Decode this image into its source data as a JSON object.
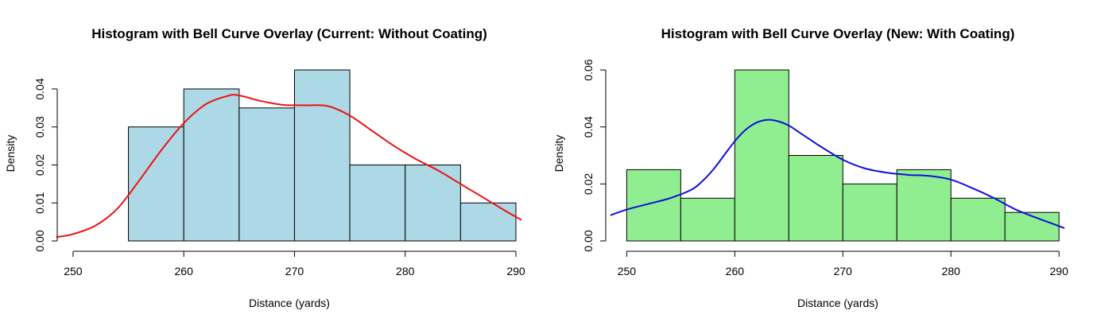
{
  "chart_data": [
    {
      "type": "bar",
      "title": "Histogram with Bell Curve Overlay (Current: Without Coating)",
      "xlabel": "Distance (yards)",
      "ylabel": "Density",
      "xlim": [
        249,
        290
      ],
      "ylim": [
        0,
        0.045
      ],
      "xticks": [
        250,
        260,
        270,
        280,
        290
      ],
      "yticks": [
        0.0,
        0.01,
        0.02,
        0.03,
        0.04
      ],
      "ytick_labels": [
        "0.00",
        "0.01",
        "0.02",
        "0.03",
        "0.04"
      ],
      "bar_color": "#add8e6",
      "curve_color": "#ee1111",
      "bins": [
        {
          "start": 255,
          "end": 260,
          "density": 0.03
        },
        {
          "start": 260,
          "end": 265,
          "density": 0.04
        },
        {
          "start": 265,
          "end": 270,
          "density": 0.035
        },
        {
          "start": 270,
          "end": 275,
          "density": 0.045
        },
        {
          "start": 275,
          "end": 280,
          "density": 0.02
        },
        {
          "start": 280,
          "end": 285,
          "density": 0.02
        },
        {
          "start": 285,
          "end": 290,
          "density": 0.01
        }
      ],
      "curve": {
        "x": [
          248.5,
          250,
          252,
          254,
          256,
          258,
          260,
          262,
          264,
          265,
          267,
          269,
          271,
          273,
          275,
          277,
          279,
          281,
          283,
          285,
          287,
          289,
          290.5
        ],
        "y": [
          0.001,
          0.0018,
          0.004,
          0.0085,
          0.016,
          0.024,
          0.031,
          0.036,
          0.0382,
          0.0383,
          0.0368,
          0.0358,
          0.0357,
          0.0355,
          0.033,
          0.029,
          0.025,
          0.0215,
          0.0185,
          0.015,
          0.0115,
          0.008,
          0.0055
        ]
      }
    },
    {
      "type": "bar",
      "title": "Histogram with Bell Curve Overlay (New: With Coating)",
      "xlabel": "Distance (yards)",
      "ylabel": "Density",
      "xlim": [
        248.5,
        290.5
      ],
      "ylim": [
        0,
        0.06
      ],
      "xticks": [
        250,
        260,
        270,
        280,
        290
      ],
      "yticks": [
        0.0,
        0.02,
        0.04,
        0.06
      ],
      "ytick_labels": [
        "0.00",
        "0.02",
        "0.04",
        "0.06"
      ],
      "bar_color": "#90ee90",
      "curve_color": "#1010dd",
      "bins": [
        {
          "start": 250,
          "end": 255,
          "density": 0.025
        },
        {
          "start": 255,
          "end": 260,
          "density": 0.015
        },
        {
          "start": 260,
          "end": 265,
          "density": 0.06
        },
        {
          "start": 265,
          "end": 270,
          "density": 0.03
        },
        {
          "start": 270,
          "end": 275,
          "density": 0.02
        },
        {
          "start": 275,
          "end": 280,
          "density": 0.025
        },
        {
          "start": 280,
          "end": 285,
          "density": 0.015
        },
        {
          "start": 285,
          "end": 290,
          "density": 0.01
        }
      ],
      "curve": {
        "x": [
          248.5,
          250,
          252,
          254,
          256,
          257,
          258,
          259,
          260,
          261,
          262,
          263,
          264,
          265,
          266,
          267,
          268,
          270,
          272,
          274,
          276,
          278,
          280,
          282,
          284,
          286,
          288,
          290.5
        ],
        "y": [
          0.009,
          0.011,
          0.013,
          0.015,
          0.018,
          0.021,
          0.025,
          0.03,
          0.035,
          0.039,
          0.0415,
          0.0425,
          0.042,
          0.0405,
          0.038,
          0.0355,
          0.033,
          0.0285,
          0.0255,
          0.024,
          0.0232,
          0.0228,
          0.0215,
          0.0185,
          0.015,
          0.011,
          0.008,
          0.0045
        ]
      }
    }
  ]
}
